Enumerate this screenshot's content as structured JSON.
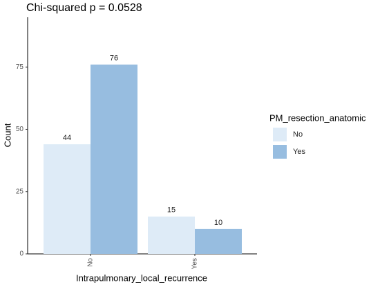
{
  "chart_data": {
    "type": "bar",
    "title": "Chi-squared p = 0.0528",
    "x_label": "Intrapulmonary_local_recurrence",
    "y_label": "Count",
    "legend_title": "PM_resection_anatomic",
    "legend_position": "right",
    "categories": [
      "No",
      "Yes"
    ],
    "series": [
      {
        "name": "No",
        "color": "#deebf7",
        "values": [
          44,
          15
        ]
      },
      {
        "name": "Yes",
        "color": "#97bde0",
        "values": [
          76,
          10
        ]
      }
    ],
    "ylim": [
      0,
      95
    ],
    "yticks": [
      0,
      25,
      50,
      75
    ],
    "grid": false
  }
}
